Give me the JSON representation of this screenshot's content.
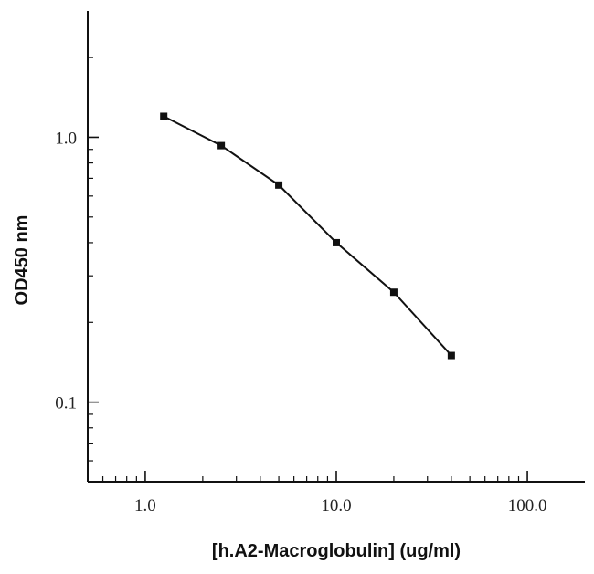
{
  "chart_data": {
    "type": "line",
    "title": "",
    "xlabel": "[h.A2-Macroglobulin] (ug/ml)",
    "ylabel": "OD450 nm",
    "x_scale": "log",
    "y_scale": "log",
    "xlim": [
      0.5,
      200
    ],
    "ylim": [
      0.05,
      3.0
    ],
    "x_ticks": [
      1.0,
      10.0,
      100.0
    ],
    "x_tick_labels": [
      "1.0",
      "10.0",
      "100.0"
    ],
    "y_ticks": [
      0.1,
      1.0
    ],
    "y_tick_labels": [
      "0.1",
      "1.0"
    ],
    "grid": false,
    "legend": "none",
    "series": [
      {
        "x": [
          1.25,
          2.5,
          5.0,
          10.0,
          20.0,
          40.0
        ],
        "y": [
          1.2,
          0.93,
          0.66,
          0.4,
          0.26,
          0.15
        ],
        "color": "#111111",
        "marker": "square"
      }
    ]
  }
}
